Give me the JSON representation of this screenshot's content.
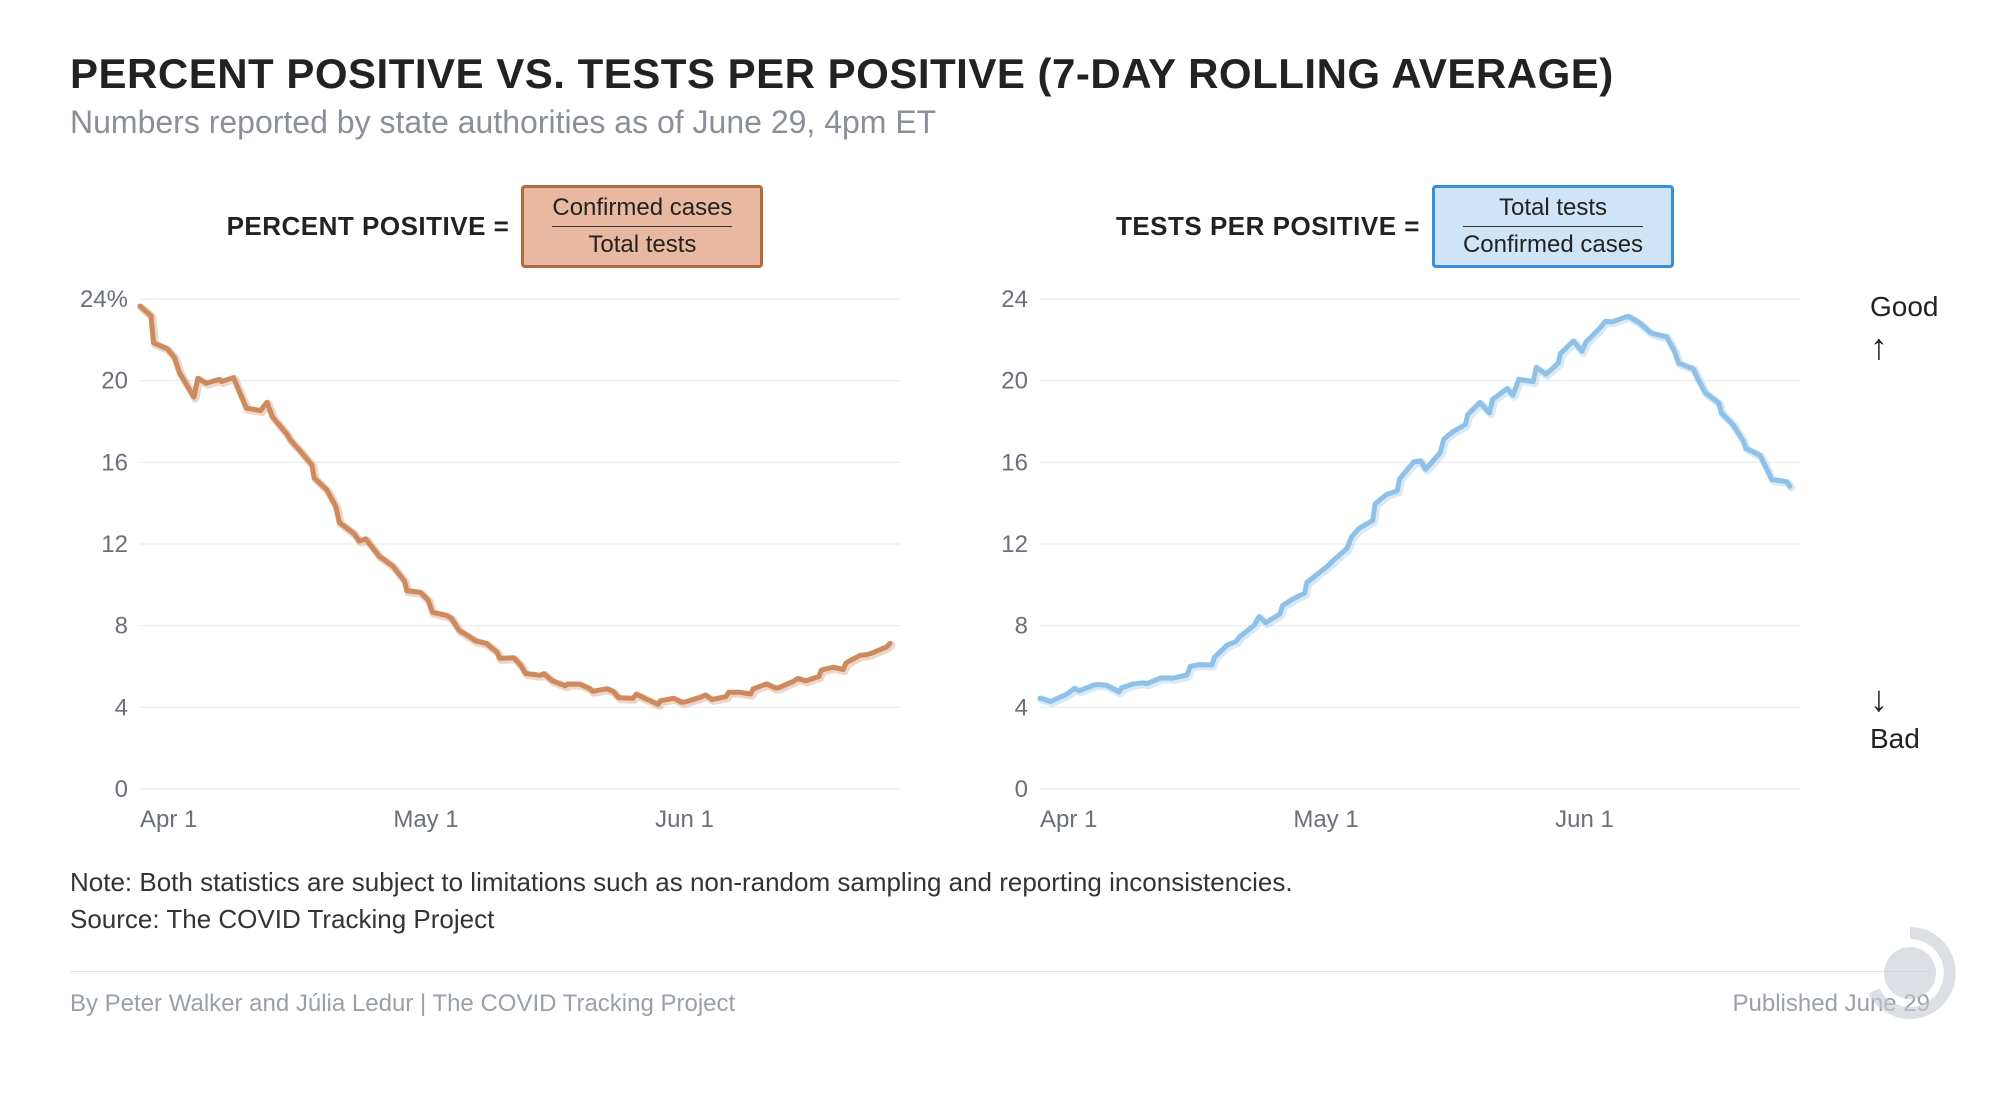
{
  "title": "PERCENT POSITIVE VS. TESTS PER POSITIVE (7-DAY ROLLING AVERAGE)",
  "subtitle": "Numbers reported by state authorities as of June 29, 4pm ET",
  "note": "Note: Both statistics are subject to limitations such as non-random sampling and reporting inconsistencies.",
  "source": "Source: The COVID Tracking Project",
  "byline": "By Peter Walker and Júlia Ledur | The COVID Tracking Project",
  "published": "Published June 29",
  "colors": {
    "bg": "#ffffff",
    "grid": "#e8eaed",
    "text": "#222222",
    "subtle": "#8a8f98",
    "orange_line": "#cc8a5e",
    "orange_fill": "#e8b9a0",
    "orange_border": "#b46a40",
    "blue_line": "#8fc1e8",
    "blue_fill": "#cfe5f7",
    "blue_border": "#3a8ed6"
  },
  "left_chart": {
    "formula_label": "PERCENT POSITIVE =",
    "numerator": "Confirmed cases",
    "denominator": "Total tests",
    "type": "line",
    "ylim": [
      0,
      24
    ],
    "ytick_step": 4,
    "ytick_labels": [
      "0",
      "4",
      "8",
      "12",
      "16",
      "20",
      "24%"
    ],
    "x_ticks": [
      0,
      30,
      61
    ],
    "x_labels": [
      "Apr 1",
      "May 1",
      "Jun 1"
    ],
    "x_range": 90,
    "line_color": "#cc8a5e",
    "line_width": 5,
    "data": [
      [
        0,
        23.5
      ],
      [
        1,
        23.2
      ],
      [
        2,
        22.0
      ],
      [
        3,
        21.5
      ],
      [
        4,
        21.0
      ],
      [
        5,
        20.5
      ],
      [
        6,
        19.3
      ],
      [
        7,
        20.0
      ],
      [
        8,
        19.8
      ],
      [
        9,
        20.2
      ],
      [
        10,
        20.0
      ],
      [
        11,
        20.0
      ],
      [
        12,
        19.0
      ],
      [
        13,
        18.8
      ],
      [
        14,
        18.5
      ],
      [
        15,
        18.8
      ],
      [
        16,
        18.3
      ],
      [
        17,
        17.5
      ],
      [
        18,
        17.0
      ],
      [
        19,
        16.5
      ],
      [
        20,
        16.0
      ],
      [
        21,
        15.3
      ],
      [
        22,
        14.5
      ],
      [
        23,
        13.8
      ],
      [
        24,
        13.2
      ],
      [
        25,
        12.5
      ],
      [
        26,
        12.0
      ],
      [
        27,
        12.3
      ],
      [
        28,
        11.5
      ],
      [
        29,
        11.2
      ],
      [
        30,
        10.8
      ],
      [
        31,
        10.3
      ],
      [
        32,
        9.8
      ],
      [
        33,
        9.5
      ],
      [
        34,
        9.2
      ],
      [
        35,
        8.8
      ],
      [
        36,
        8.5
      ],
      [
        37,
        8.2
      ],
      [
        38,
        7.8
      ],
      [
        39,
        7.5
      ],
      [
        40,
        7.2
      ],
      [
        41,
        7.0
      ],
      [
        42,
        6.8
      ],
      [
        43,
        6.5
      ],
      [
        44,
        6.3
      ],
      [
        45,
        6.0
      ],
      [
        46,
        5.8
      ],
      [
        47,
        5.6
      ],
      [
        48,
        5.5
      ],
      [
        49,
        5.3
      ],
      [
        50,
        5.2
      ],
      [
        51,
        5.1
      ],
      [
        52,
        5.0
      ],
      [
        53,
        5.0
      ],
      [
        54,
        4.9
      ],
      [
        55,
        4.8
      ],
      [
        56,
        4.7
      ],
      [
        57,
        4.6
      ],
      [
        58,
        4.5
      ],
      [
        59,
        4.5
      ],
      [
        60,
        4.4
      ],
      [
        61,
        4.3
      ],
      [
        62,
        4.3
      ],
      [
        63,
        4.3
      ],
      [
        64,
        4.3
      ],
      [
        65,
        4.4
      ],
      [
        66,
        4.4
      ],
      [
        67,
        4.5
      ],
      [
        68,
        4.5
      ],
      [
        69,
        4.6
      ],
      [
        70,
        4.6
      ],
      [
        71,
        4.7
      ],
      [
        72,
        4.8
      ],
      [
        73,
        4.9
      ],
      [
        74,
        5.0
      ],
      [
        75,
        5.0
      ],
      [
        76,
        5.1
      ],
      [
        77,
        5.2
      ],
      [
        78,
        5.3
      ],
      [
        79,
        5.4
      ],
      [
        80,
        5.6
      ],
      [
        81,
        5.7
      ],
      [
        82,
        5.9
      ],
      [
        83,
        6.0
      ],
      [
        84,
        6.2
      ],
      [
        85,
        6.4
      ],
      [
        86,
        6.6
      ],
      [
        87,
        6.8
      ],
      [
        88,
        6.9
      ],
      [
        89,
        7.0
      ]
    ]
  },
  "right_chart": {
    "formula_label": "TESTS PER POSITIVE =",
    "numerator": "Total tests",
    "denominator": "Confirmed cases",
    "type": "line",
    "ylim": [
      0,
      24
    ],
    "ytick_step": 4,
    "ytick_labels": [
      "0",
      "4",
      "8",
      "12",
      "16",
      "20",
      "24"
    ],
    "x_ticks": [
      0,
      30,
      61
    ],
    "x_labels": [
      "Apr 1",
      "May 1",
      "Jun 1"
    ],
    "x_range": 90,
    "line_color": "#8fc1e8",
    "line_width": 5,
    "good_label": "Good",
    "bad_label": "Bad",
    "data": [
      [
        0,
        4.3
      ],
      [
        1,
        4.3
      ],
      [
        2,
        4.5
      ],
      [
        3,
        4.6
      ],
      [
        4,
        4.8
      ],
      [
        5,
        4.9
      ],
      [
        6,
        5.2
      ],
      [
        7,
        5.0
      ],
      [
        8,
        5.0
      ],
      [
        9,
        4.9
      ],
      [
        10,
        5.0
      ],
      [
        11,
        5.0
      ],
      [
        12,
        5.2
      ],
      [
        13,
        5.3
      ],
      [
        14,
        5.4
      ],
      [
        15,
        5.3
      ],
      [
        16,
        5.5
      ],
      [
        17,
        5.7
      ],
      [
        18,
        5.9
      ],
      [
        19,
        6.0
      ],
      [
        20,
        6.2
      ],
      [
        21,
        6.5
      ],
      [
        22,
        6.9
      ],
      [
        23,
        7.2
      ],
      [
        24,
        7.6
      ],
      [
        25,
        8.0
      ],
      [
        26,
        8.3
      ],
      [
        27,
        8.2
      ],
      [
        28,
        8.7
      ],
      [
        29,
        8.9
      ],
      [
        30,
        9.2
      ],
      [
        31,
        9.7
      ],
      [
        32,
        10.2
      ],
      [
        33,
        10.5
      ],
      [
        34,
        10.9
      ],
      [
        35,
        11.3
      ],
      [
        36,
        11.8
      ],
      [
        37,
        12.2
      ],
      [
        38,
        12.8
      ],
      [
        39,
        13.3
      ],
      [
        40,
        13.9
      ],
      [
        41,
        14.3
      ],
      [
        42,
        14.7
      ],
      [
        43,
        15.3
      ],
      [
        44,
        15.9
      ],
      [
        45,
        16.0
      ],
      [
        46,
        15.8
      ],
      [
        47,
        16.5
      ],
      [
        48,
        17.0
      ],
      [
        49,
        17.5
      ],
      [
        50,
        18.0
      ],
      [
        51,
        18.3
      ],
      [
        52,
        18.8
      ],
      [
        53,
        18.5
      ],
      [
        54,
        19.2
      ],
      [
        55,
        19.5
      ],
      [
        56,
        19.2
      ],
      [
        57,
        20.2
      ],
      [
        58,
        20.0
      ],
      [
        59,
        20.5
      ],
      [
        60,
        20.3
      ],
      [
        61,
        21.0
      ],
      [
        62,
        21.3
      ],
      [
        63,
        21.8
      ],
      [
        64,
        21.5
      ],
      [
        65,
        22.0
      ],
      [
        66,
        22.5
      ],
      [
        67,
        22.8
      ],
      [
        68,
        23.0
      ],
      [
        69,
        23.2
      ],
      [
        70,
        23.0
      ],
      [
        71,
        22.8
      ],
      [
        72,
        22.5
      ],
      [
        73,
        22.3
      ],
      [
        74,
        22.0
      ],
      [
        75,
        21.5
      ],
      [
        76,
        21.0
      ],
      [
        77,
        20.5
      ],
      [
        78,
        20.0
      ],
      [
        79,
        19.5
      ],
      [
        80,
        19.0
      ],
      [
        81,
        18.3
      ],
      [
        82,
        17.8
      ],
      [
        83,
        17.2
      ],
      [
        84,
        16.7
      ],
      [
        85,
        16.2
      ],
      [
        86,
        15.7
      ],
      [
        87,
        15.3
      ],
      [
        88,
        15.0
      ],
      [
        89,
        14.7
      ]
    ]
  }
}
